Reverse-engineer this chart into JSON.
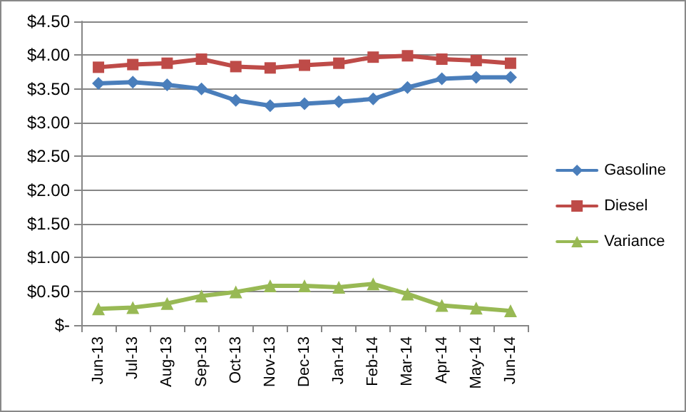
{
  "chart_data": {
    "type": "line",
    "categories": [
      "Jun-13",
      "Jul-13",
      "Aug-13",
      "Sep-13",
      "Oct-13",
      "Nov-13",
      "Dec-13",
      "Jan-14",
      "Feb-14",
      "Mar-14",
      "Apr-14",
      "May-14",
      "Jun-14"
    ],
    "series": [
      {
        "name": "Gasoline",
        "color": "#4a7ebb",
        "marker": "diamond",
        "values": [
          3.58,
          3.6,
          3.56,
          3.5,
          3.33,
          3.25,
          3.28,
          3.31,
          3.35,
          3.52,
          3.65,
          3.67,
          3.67
        ]
      },
      {
        "name": "Diesel",
        "color": "#be4b48",
        "marker": "square",
        "values": [
          3.82,
          3.86,
          3.88,
          3.94,
          3.83,
          3.81,
          3.85,
          3.88,
          3.97,
          3.99,
          3.94,
          3.92,
          3.88
        ]
      },
      {
        "name": "Variance",
        "color": "#98b954",
        "marker": "triangle",
        "values": [
          0.24,
          0.26,
          0.32,
          0.43,
          0.49,
          0.58,
          0.58,
          0.56,
          0.61,
          0.46,
          0.29,
          0.25,
          0.21
        ]
      }
    ],
    "ylim": [
      0,
      4.5
    ],
    "yticks": [
      {
        "value": 0,
        "label": "$-"
      },
      {
        "value": 0.5,
        "label": "$0.50"
      },
      {
        "value": 1,
        "label": "$1.00"
      },
      {
        "value": 1.5,
        "label": "$1.50"
      },
      {
        "value": 2,
        "label": "$2.00"
      },
      {
        "value": 2.5,
        "label": "$2.50"
      },
      {
        "value": 3,
        "label": "$3.00"
      },
      {
        "value": 3.5,
        "label": "$3.50"
      },
      {
        "value": 4,
        "label": "$4.00"
      },
      {
        "value": 4.5,
        "label": "$4.50"
      }
    ],
    "grid": "y",
    "legend": "right",
    "line_style": "solid"
  }
}
